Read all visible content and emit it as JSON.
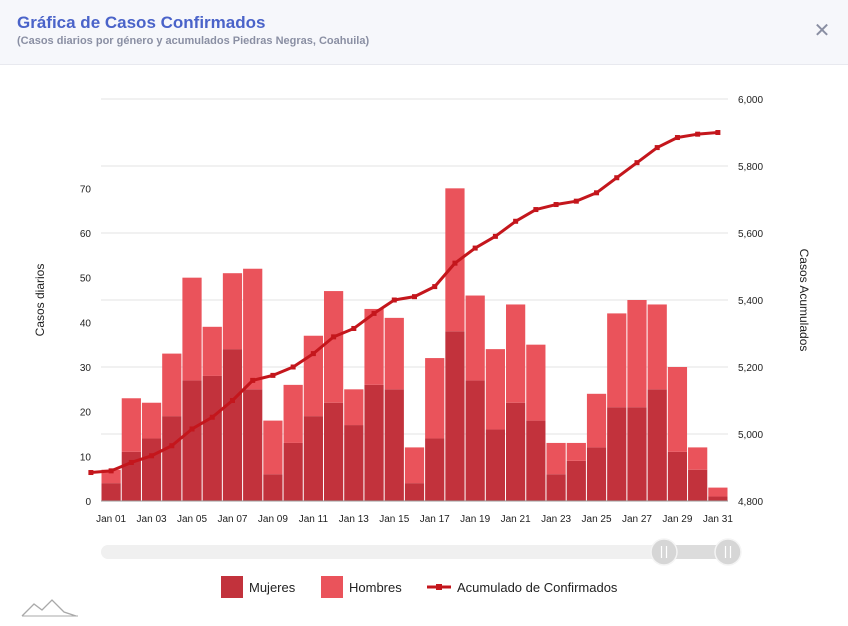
{
  "header": {
    "title": "Gráfica de Casos Confirmados",
    "subtitle": "(Casos diarios por género y acumulados Piedras Negras, Coahuila)",
    "close_icon": "close-icon"
  },
  "colors": {
    "mujeres": "#c2323c",
    "hombres": "#ea535b",
    "acumulado": "#c4161c",
    "grid": "#e3e3e3"
  },
  "chart_data": {
    "type": "bar",
    "stacked": true,
    "x_labels": [
      "Jan 01",
      "Jan 03",
      "Jan 05",
      "Jan 07",
      "Jan 09",
      "Jan 11",
      "Jan 13",
      "Jan 15",
      "Jan 17",
      "Jan 19",
      "Jan 21",
      "Jan 23",
      "Jan 25",
      "Jan 27",
      "Jan 29",
      "Jan 31"
    ],
    "ylabel_left": "Casos diarios",
    "ylabel_right": "Casos Acumulados",
    "y_left_ticks": [
      "0",
      "10",
      "20",
      "30",
      "40",
      "50",
      "60",
      "70"
    ],
    "y_right_ticks": [
      "4,800",
      "5,000",
      "5,200",
      "5,400",
      "5,600",
      "5,800",
      "6,000"
    ],
    "y_left_range": [
      0,
      90
    ],
    "y_right_range": [
      4800,
      6000
    ],
    "legend_position": "bottom",
    "series": [
      {
        "name": "Mujeres",
        "type": "bar",
        "values": [
          4,
          11,
          14,
          19,
          27,
          28,
          34,
          25,
          6,
          13,
          19,
          22,
          17,
          26,
          25,
          4,
          14,
          38,
          27,
          16,
          22,
          18,
          6,
          9,
          12,
          21,
          21,
          25,
          11,
          7,
          1
        ]
      },
      {
        "name": "Hombres",
        "type": "bar",
        "values": [
          3,
          12,
          8,
          14,
          23,
          11,
          17,
          27,
          12,
          13,
          18,
          25,
          8,
          17,
          16,
          8,
          18,
          32,
          19,
          18,
          22,
          17,
          7,
          4,
          12,
          21,
          24,
          19,
          19,
          5,
          2
        ]
      },
      {
        "name": "Acumulado de Confirmados",
        "type": "line",
        "values": [
          4885,
          4890,
          4915,
          4935,
          4965,
          5015,
          5050,
          5100,
          5160,
          5175,
          5200,
          5240,
          5290,
          5315,
          5360,
          5400,
          5410,
          5440,
          5510,
          5555,
          5590,
          5635,
          5670,
          5685,
          5695,
          5720,
          5765,
          5810,
          5855,
          5885,
          5895,
          5900
        ]
      }
    ]
  },
  "legend": {
    "items": [
      {
        "label": "Mujeres",
        "icon": "square-swatch"
      },
      {
        "label": "Hombres",
        "icon": "square-swatch"
      },
      {
        "label": "Acumulado de Confirmados",
        "icon": "line-marker"
      }
    ]
  },
  "navigator": {
    "range_start": 0.88,
    "range_end": 1.0,
    "handle_icon": "grip-handle-icon"
  },
  "watermark": {
    "icon": "mountain-logo-icon"
  }
}
